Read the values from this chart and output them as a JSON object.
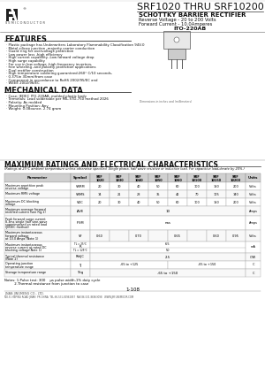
{
  "title": "SRF1020 THRU SRF10200",
  "subtitle1": "SCHOTTKY BARRIER RECTIFIER",
  "subtitle2": "Reverse Voltage - 20 to 200 Volts",
  "subtitle3": "Forward Current - 10.0Amperes",
  "package": "ITO-220AB",
  "features_title": "FEATURES",
  "features": [
    "Plastic package has Underwriters Laboratory Flammability Classification 94V-0",
    "Metal silicon junction ,majority carrier conduction",
    "Guard ring for overvoltage protection",
    "Low power loss ,high efficiency",
    "High current capability ,Low forward voltage drop",
    "High surge capability",
    "For use in low voltage ,high frequency inverters,",
    "free wheeling ,and polarity protection applications",
    "Dual rectifier construction",
    "High temperature soldering guaranteed:260° C/10 seconds,",
    "0.375in 30mm)from case",
    "Component in accordance to RoHS 2002/95/EC and",
    "WEEE 2002/96/EC"
  ],
  "mech_title": "MECHANICAL DATA",
  "mech_data": [
    "Case: JEDEC ITO-220AB, molded plastic body",
    "Terminals: Lead solderable per MIL-STD-750 method 2026",
    "Polarity: As molded",
    "Mounting Position: Any",
    "Weight: 0.08ounce, 2.74 gram"
  ],
  "max_title": "MAXIMUM RATINGS AND ELECTRICAL CHARACTERISTICS",
  "max_note": "(Ratings at 25°C ambient temperature unless otherwise specified .Single phase, half wave resistive or inductive load. For capacitive load,derate by 20%.)",
  "col_headers": [
    "Symbol",
    "SRF\n1020",
    "SRF\n1030",
    "SRF\n1040",
    "SRF\n1050",
    "SRF\n1060",
    "SRF\n10100",
    "SRF\n10150\n10200",
    "Units"
  ],
  "notes": [
    "Notes: 1.Pulse test: 300    μs pulse width,1% duty cycle",
    "         2.Thermal resistance from junction to case"
  ],
  "page_num": "1-108",
  "company": "JINAN JINGMENG CO., LTD.",
  "address": "NO.51 HEPING ROAD JINAN  PR CHINA  TEL:86-531-86962857  FAX:86-531-86963098   WWW.JRFUSEMICOR.COM",
  "bg_color": "#ffffff"
}
